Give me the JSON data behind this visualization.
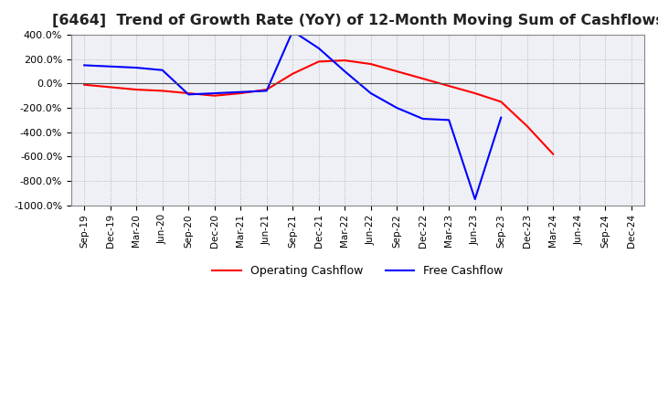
{
  "title": "[6464]  Trend of Growth Rate (YoY) of 12-Month Moving Sum of Cashflows",
  "title_fontsize": 11.5,
  "ylim": [
    -1000,
    400
  ],
  "yticks": [
    400,
    200,
    0,
    -200,
    -400,
    -600,
    -800,
    -1000
  ],
  "ytick_labels": [
    "400.0%",
    "200.0%",
    "0.0%",
    "-200.0%",
    "-400.0%",
    "-600.0%",
    "-800.0%",
    "-1000.0%"
  ],
  "x_labels": [
    "Sep-19",
    "Dec-19",
    "Mar-20",
    "Jun-20",
    "Sep-20",
    "Dec-20",
    "Mar-21",
    "Jun-21",
    "Sep-21",
    "Dec-21",
    "Mar-22",
    "Jun-22",
    "Sep-22",
    "Dec-22",
    "Mar-23",
    "Jun-23",
    "Sep-23",
    "Dec-23",
    "Mar-24",
    "Jun-24",
    "Sep-24",
    "Dec-24"
  ],
  "operating_cashflow": [
    -10,
    -30,
    -50,
    -60,
    -80,
    -100,
    -80,
    -50,
    80,
    180,
    190,
    160,
    100,
    40,
    -20,
    -80,
    -150,
    -350,
    -580,
    null,
    null,
    null
  ],
  "free_cashflow": [
    150,
    140,
    130,
    110,
    -90,
    -80,
    -70,
    -60,
    430,
    290,
    100,
    -80,
    -200,
    -290,
    -300,
    -950,
    -280,
    null,
    null,
    null,
    null,
    null
  ],
  "op_color": "#ff0000",
  "fc_color": "#0000ff",
  "grid_color": "#aaaaaa",
  "bg_color": "#eef0f5",
  "plot_bg": "#eef0f5",
  "line_width": 1.5
}
